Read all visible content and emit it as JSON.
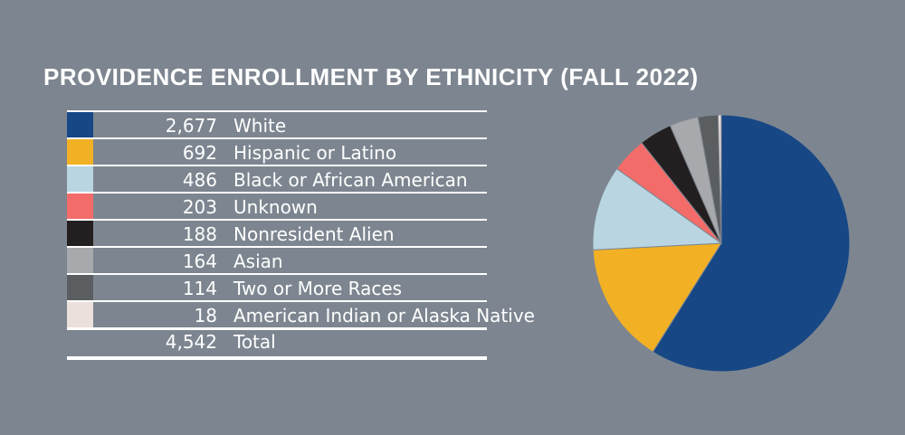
{
  "title": "PROVIDENCE ENROLLMENT BY ETHNICITY (FALL 2022)",
  "legend": [
    {
      "count": "2,677",
      "label": "White",
      "color": "#174785"
    },
    {
      "count": "692",
      "label": "Hispanic or Latino",
      "color": "#f2b124"
    },
    {
      "count": "486",
      "label": "Black or African American",
      "color": "#b9d5e2"
    },
    {
      "count": "203",
      "label": "Unknown",
      "color": "#f46c6a"
    },
    {
      "count": "188",
      "label": "Nonresident Alien",
      "color": "#231f20"
    },
    {
      "count": "164",
      "label": "Asian",
      "color": "#a7a9ac"
    },
    {
      "count": "114",
      "label": "Two or More Races",
      "color": "#5b5e61"
    },
    {
      "count": "18",
      "label": "American Indian or Alaska Native",
      "color": "#ece0dc"
    }
  ],
  "total": {
    "count": "4,542",
    "label": "Total"
  },
  "chart_data": {
    "type": "pie",
    "title": "PROVIDENCE ENROLLMENT BY ETHNICITY (FALL 2022)",
    "categories": [
      "White",
      "Hispanic or Latino",
      "Black or African American",
      "Unknown",
      "Nonresident Alien",
      "Asian",
      "Two or More Races",
      "American Indian or Alaska Native"
    ],
    "values": [
      2677,
      692,
      486,
      203,
      188,
      164,
      114,
      18
    ],
    "total": 4542,
    "colors": [
      "#174785",
      "#f2b124",
      "#b9d5e2",
      "#f46c6a",
      "#231f20",
      "#a7a9ac",
      "#5b5e61",
      "#ece0dc"
    ]
  }
}
